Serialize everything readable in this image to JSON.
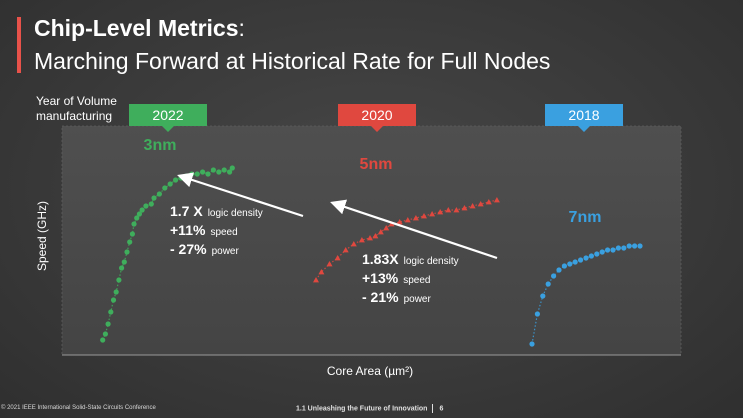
{
  "slide": {
    "title_bold": "Chip-Level Metrics",
    "title_colon": ":",
    "subtitle": "Marching Forward at Historical Rate for Full Nodes",
    "year_label_line1": "Year of Volume",
    "year_label_line2": "manufacturing",
    "footer_left": "© 2021 IEEE International Solid-State Circuits Conference",
    "footer_mid": "1.1 Unleashing the Future of Innovation",
    "footer_page": "6"
  },
  "colors": {
    "accent": "#e8524a",
    "green": "#3fae5c",
    "red": "#e0483f",
    "blue": "#3aa0e0",
    "plot_bg": "#4a4a4a",
    "arrow": "#ffffff"
  },
  "chart_data": {
    "type": "scatter",
    "xlabel": "Core Area (µm²)",
    "ylabel": "Speed (GHz)",
    "grid": false,
    "tick_labels": "none",
    "xlim": [
      0,
      100
    ],
    "ylim": [
      0,
      100
    ],
    "series": [
      {
        "name": "3nm",
        "year": "2022",
        "color": "#3fae5c",
        "marker": "circle",
        "points": [
          [
            0.5,
            5
          ],
          [
            1,
            8
          ],
          [
            1.5,
            13
          ],
          [
            2,
            19
          ],
          [
            2.5,
            25
          ],
          [
            3,
            29
          ],
          [
            3.5,
            35
          ],
          [
            4,
            41
          ],
          [
            4.5,
            44
          ],
          [
            5,
            49
          ],
          [
            5.5,
            54
          ],
          [
            6,
            58
          ],
          [
            6.3,
            63
          ],
          [
            6.8,
            66
          ],
          [
            7.3,
            68
          ],
          [
            7.8,
            70
          ],
          [
            8.5,
            72
          ],
          [
            9.5,
            73
          ],
          [
            10,
            76
          ],
          [
            11,
            78
          ],
          [
            12,
            81
          ],
          [
            13,
            83
          ],
          [
            14,
            85
          ],
          [
            15,
            86
          ],
          [
            16,
            87
          ],
          [
            17,
            88
          ],
          [
            18,
            88
          ],
          [
            19,
            89
          ],
          [
            20,
            88
          ],
          [
            21,
            90
          ],
          [
            22,
            89
          ],
          [
            23,
            90
          ],
          [
            24,
            89
          ],
          [
            24.5,
            91
          ]
        ]
      },
      {
        "name": "5nm",
        "year": "2020",
        "color": "#e0483f",
        "marker": "triangle",
        "points": [
          [
            40,
            35
          ],
          [
            41,
            39
          ],
          [
            42.5,
            43
          ],
          [
            44,
            46
          ],
          [
            45.5,
            50
          ],
          [
            47,
            53
          ],
          [
            48.5,
            55
          ],
          [
            50,
            56
          ],
          [
            51,
            57
          ],
          [
            52,
            59
          ],
          [
            53,
            61
          ],
          [
            54,
            63
          ],
          [
            55.5,
            64
          ],
          [
            57,
            65
          ],
          [
            58.5,
            66
          ],
          [
            60,
            67
          ],
          [
            61.5,
            68
          ],
          [
            63,
            69
          ],
          [
            64.5,
            70
          ],
          [
            66,
            70
          ],
          [
            67.5,
            71
          ],
          [
            69,
            72
          ],
          [
            70.5,
            73
          ],
          [
            72,
            74
          ],
          [
            73.5,
            75
          ]
        ]
      },
      {
        "name": "7nm",
        "year": "2018",
        "color": "#3aa0e0",
        "marker": "circle",
        "points": [
          [
            80,
            3
          ],
          [
            81,
            18
          ],
          [
            82,
            27
          ],
          [
            83,
            33
          ],
          [
            84,
            37
          ],
          [
            85,
            40
          ],
          [
            86,
            42
          ],
          [
            87,
            43
          ],
          [
            88,
            44
          ],
          [
            89,
            45
          ],
          [
            90,
            46
          ],
          [
            91,
            47
          ],
          [
            92,
            48
          ],
          [
            93,
            49
          ],
          [
            94,
            50
          ],
          [
            95,
            50
          ],
          [
            96,
            51
          ],
          [
            97,
            51
          ],
          [
            98,
            52
          ],
          [
            99,
            52
          ],
          [
            100,
            52
          ]
        ]
      }
    ],
    "annotations": [
      {
        "from": "5nm",
        "to": "3nm",
        "factor": "1.7 X",
        "factor_suffix": "logic density",
        "speed": "+11%",
        "speed_suffix": "speed",
        "power": "- 27%",
        "power_suffix": "power"
      },
      {
        "from": "7nm",
        "to": "5nm",
        "factor": "1.83X",
        "factor_suffix": "logic density",
        "speed": "+13%",
        "speed_suffix": "speed",
        "power": "- 21%",
        "power_suffix": "power"
      }
    ]
  }
}
